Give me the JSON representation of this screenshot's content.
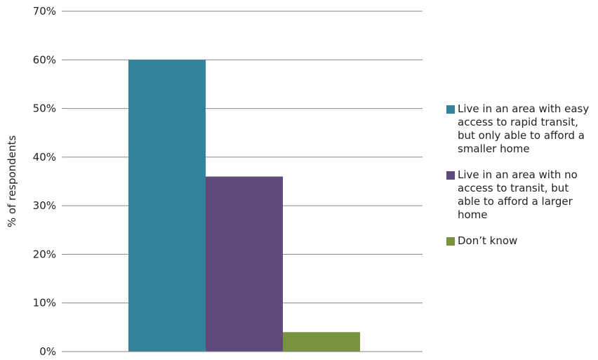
{
  "chart_data": {
    "type": "bar",
    "title": "",
    "xlabel": "",
    "ylabel": "% of respondents",
    "ylim": [
      0,
      70
    ],
    "yticks": [
      "0%",
      "10%",
      "20%",
      "30%",
      "40%",
      "50%",
      "60%",
      "70%"
    ],
    "grid": true,
    "legend_position": "right",
    "categories": [
      ""
    ],
    "series": [
      {
        "name": "Live in an area with easy access to rapid transit, but only able to afford a smaller home",
        "values": [
          60
        ],
        "color": "#31849b"
      },
      {
        "name": "Live in an area with no access to transit, but able to afford a larger home",
        "values": [
          36
        ],
        "color": "#604a7b"
      },
      {
        "name": "Don’t know",
        "values": [
          4
        ],
        "color": "#77933c"
      }
    ]
  }
}
